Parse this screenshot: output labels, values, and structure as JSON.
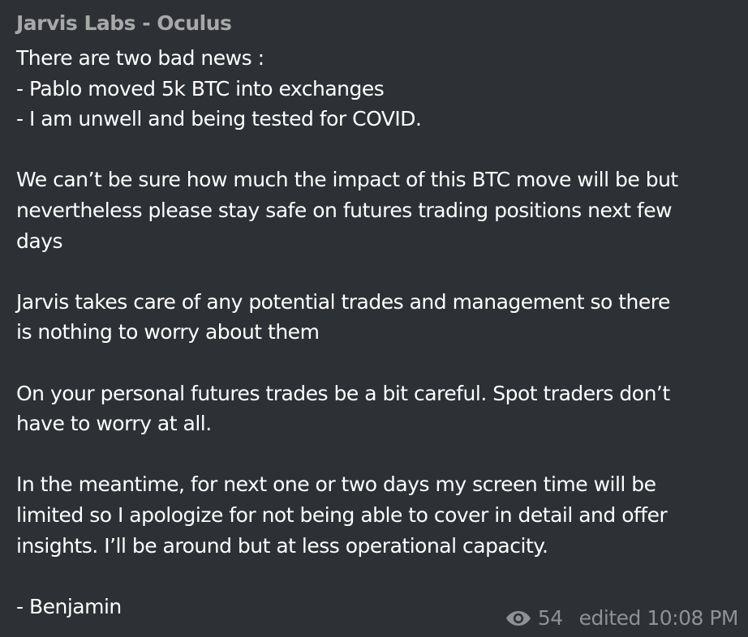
{
  "message": {
    "sender": "Jarvis Labs - Oculus",
    "paragraphs": [
      [
        "There are two bad news :",
        "- Pablo moved 5k BTC into exchanges",
        "- I am unwell and being tested for COVID."
      ],
      [
        "We can’t be sure how much the impact of this BTC move will be but",
        "nevertheless please stay safe on futures trading positions next few",
        "days"
      ],
      [
        "Jarvis takes care of any potential trades and management so there",
        "is nothing to worry about them"
      ],
      [
        "On your personal futures trades be a bit careful. Spot traders don’t",
        "have to worry at all."
      ],
      [
        "In the meantime, for next one or two days my screen time will be",
        "limited so I apologize for not being able to cover in detail and offer",
        "insights. I’ll be around but at less operational capacity."
      ],
      [
        "- Benjamin"
      ]
    ],
    "views": "54",
    "edited_label": "edited 10:08 PM",
    "icons": {
      "views": "eye-icon"
    },
    "colors": {
      "background": "#2d3035",
      "text": "#ffffff",
      "sender": "#a8a8a8",
      "meta": "#8e9196"
    }
  }
}
